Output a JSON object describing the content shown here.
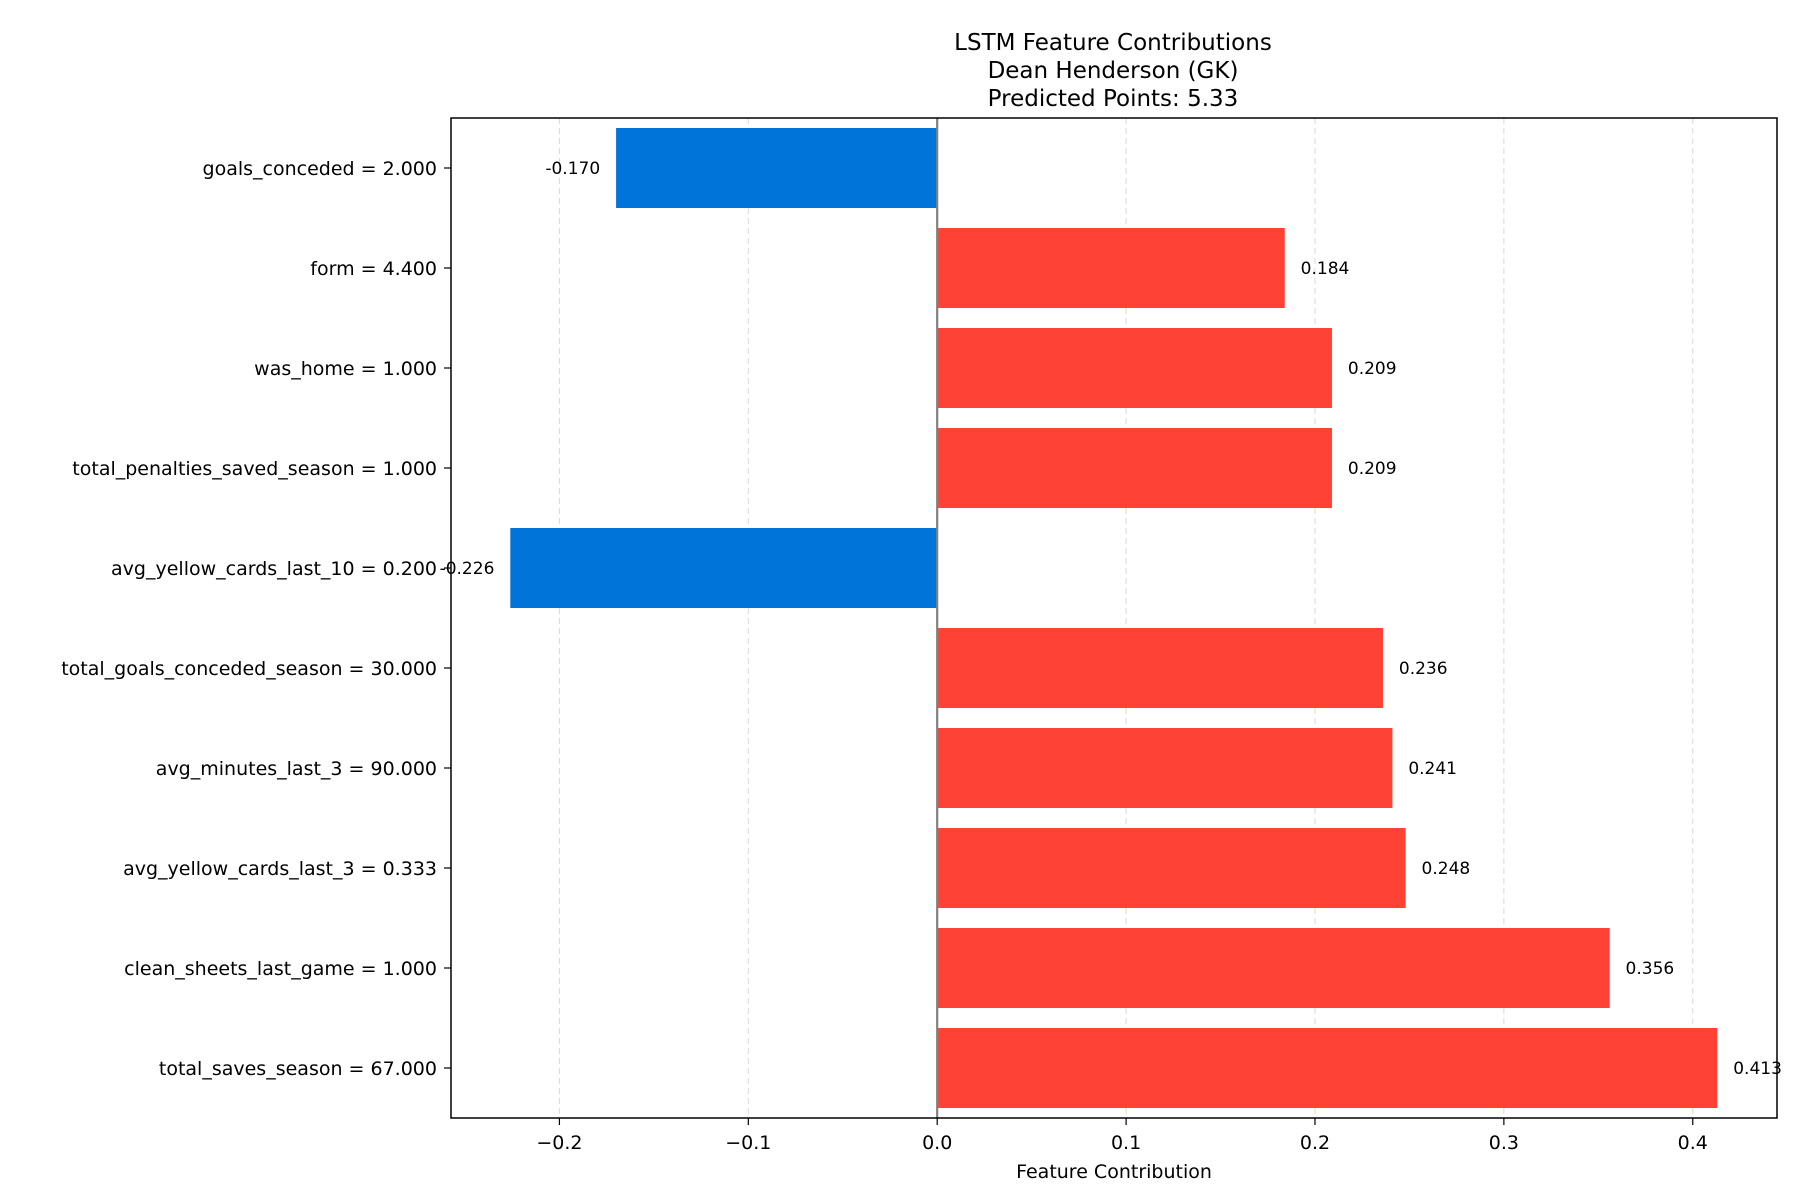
{
  "chart_data": {
    "type": "bar",
    "orientation": "horizontal",
    "title_lines": [
      "LSTM Feature Contributions",
      "Dean Henderson (GK)",
      "Predicted Points: 5.33"
    ],
    "xlabel": "Feature Contribution",
    "ylabel": "",
    "xlim": [
      -0.2574,
      0.4446
    ],
    "xticks": [
      -0.2,
      -0.1,
      0.0,
      0.1,
      0.2,
      0.3,
      0.4
    ],
    "xtick_labels": [
      "−0.2",
      "−0.1",
      "0.0",
      "0.1",
      "0.2",
      "0.3",
      "0.4"
    ],
    "grid": "x-dashed",
    "categories": [
      "goals_conceded = 2.000",
      "form = 4.400",
      "was_home = 1.000",
      "total_penalties_saved_season = 1.000",
      "avg_yellow_cards_last_10 = 0.200",
      "total_goals_conceded_season = 30.000",
      "avg_minutes_last_3 = 90.000",
      "avg_yellow_cards_last_3 = 0.333",
      "clean_sheets_last_game = 1.000",
      "total_saves_season = 67.000"
    ],
    "values": [
      -0.17,
      0.184,
      0.209,
      0.209,
      -0.226,
      0.236,
      0.241,
      0.248,
      0.356,
      0.413
    ],
    "value_labels": [
      "-0.170",
      "0.184",
      "0.209",
      "0.209",
      "-0.226",
      "0.236",
      "0.241",
      "0.248",
      "0.356",
      "0.413"
    ],
    "colors": {
      "positive": "#ff4136",
      "negative": "#0074d9",
      "zero_line": "#808080"
    }
  }
}
